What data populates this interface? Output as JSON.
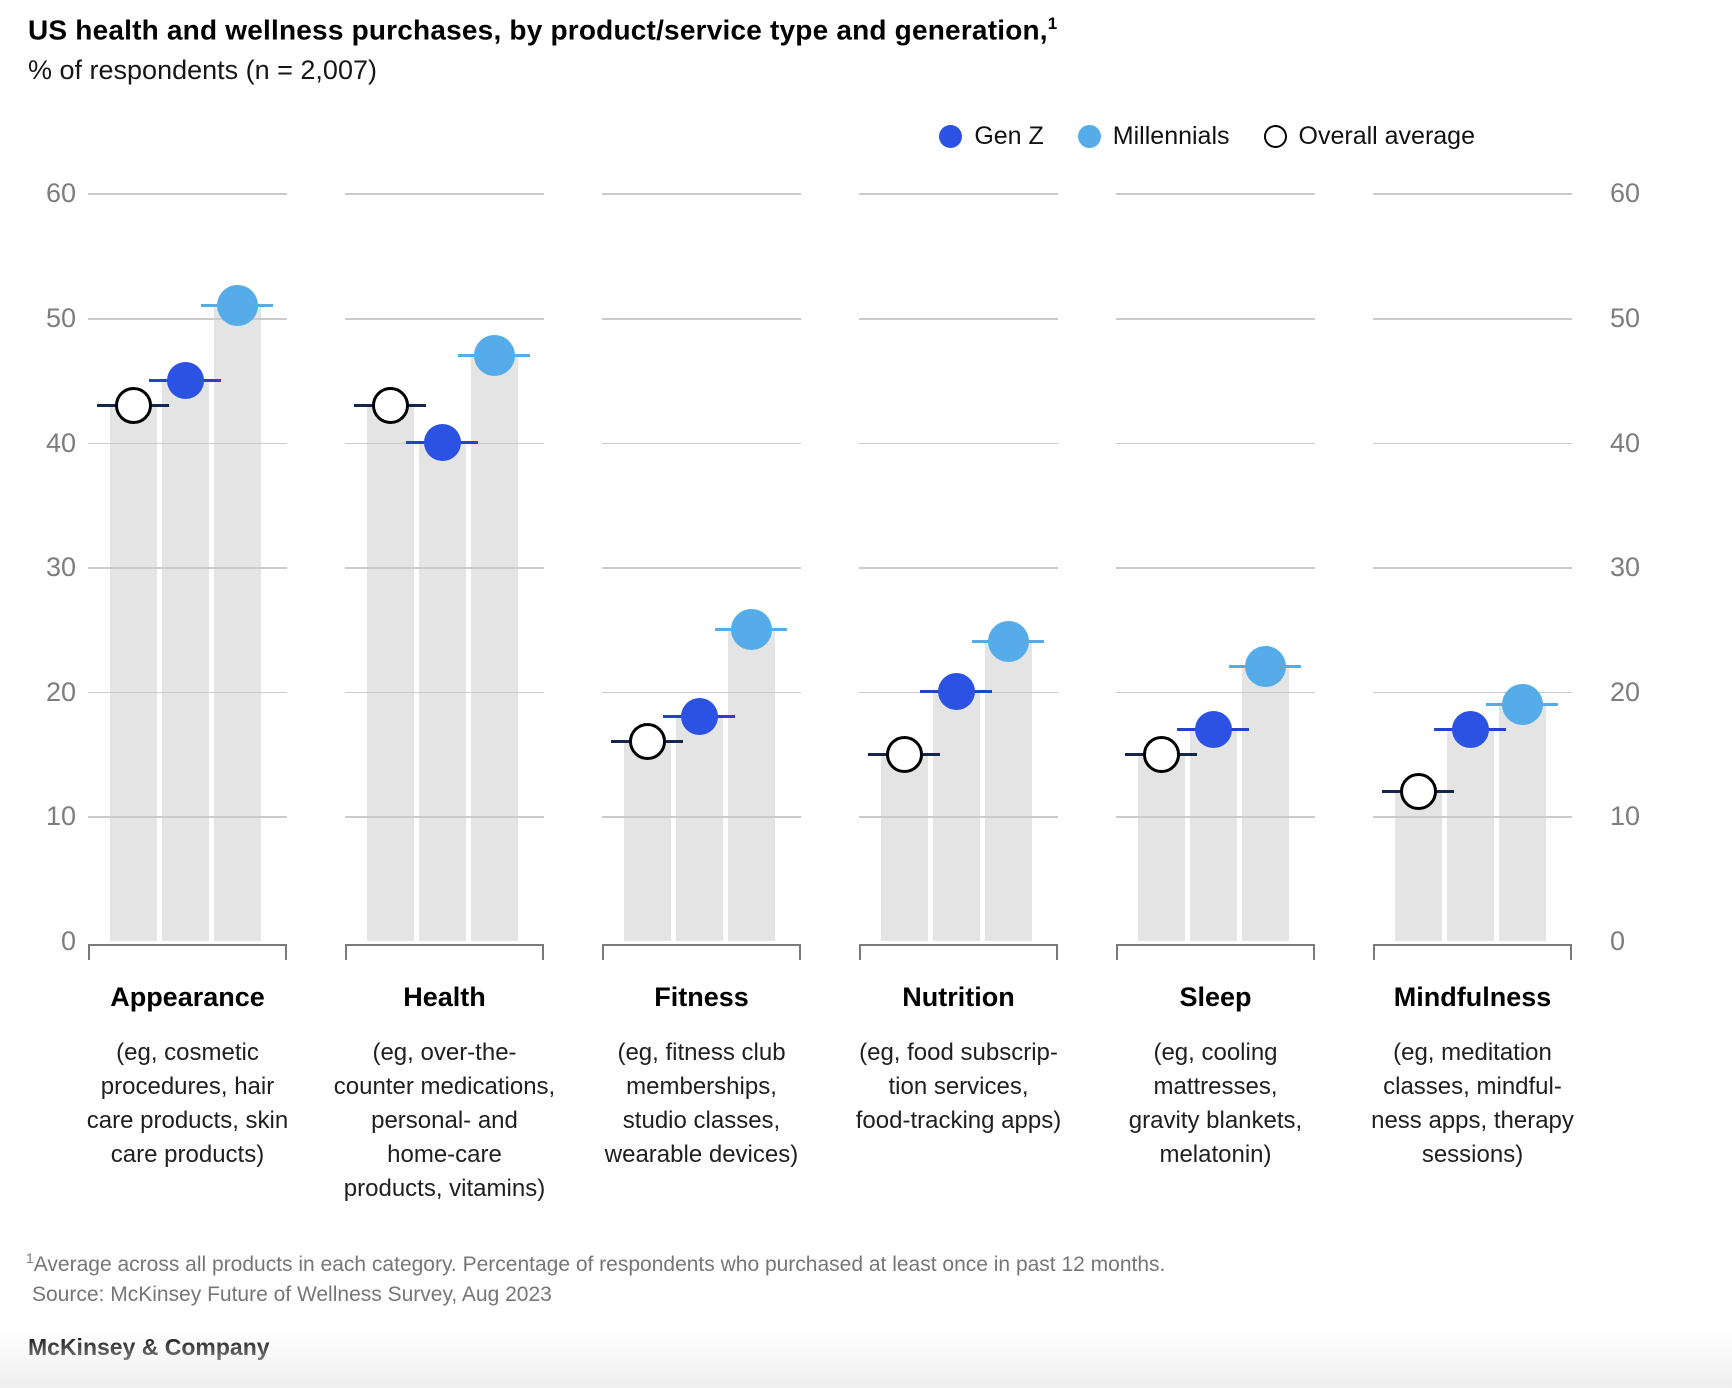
{
  "header": {
    "title": "US health and wellness purchases, by product/service type and generation,",
    "title_superscript": "1",
    "subtitle": "% of respondents (n = 2,007)"
  },
  "legend": {
    "items": [
      {
        "label": "Gen Z",
        "type": "filled",
        "color": "#2B52E2"
      },
      {
        "label": "Millennials",
        "type": "filled",
        "color": "#55ACE8"
      },
      {
        "label": "Overall average",
        "type": "open",
        "color": "#000000"
      }
    ]
  },
  "chart_data": {
    "type": "bar",
    "subtype": "dot-markers-over-gray-bars",
    "title": "US health and wellness purchases, by product/service type and generation",
    "units": "% of respondents",
    "sample_size": "n = 2,007",
    "ylim": [
      0,
      60
    ],
    "yticks": [
      0,
      10,
      20,
      30,
      40,
      50,
      60
    ],
    "grid": "horizontal, segmented per category, tick labels on both left and right sides",
    "legend_position": "top-right",
    "categories": [
      "Appearance",
      "Health",
      "Fitness",
      "Nutrition",
      "Sleep",
      "Mindfulness"
    ],
    "category_descriptions": [
      [
        "(eg, cosmetic",
        "procedures, hair",
        "care products, skin",
        "care products)"
      ],
      [
        "(eg, over-the-",
        "counter medications,",
        "personal- and",
        "home-care",
        "products, vitamins)"
      ],
      [
        "(eg, fitness club",
        "memberships,",
        "studio classes,",
        "wearable devices)"
      ],
      [
        "(eg, food subscrip-",
        "tion services,",
        "food-tracking apps)"
      ],
      [
        "(eg, cooling",
        "mattresses,",
        "gravity blankets,",
        "melatonin)"
      ],
      [
        "(eg, meditation",
        "classes, mindful-",
        "ness apps, therapy",
        "sessions)"
      ]
    ],
    "series": [
      {
        "name": "Overall average",
        "marker": "open-circle",
        "dot_color": "#FFFFFF",
        "ring_color": "#000000",
        "whisker_color": "#16254E",
        "values": [
          43,
          43,
          16,
          15,
          15,
          12
        ]
      },
      {
        "name": "Gen Z",
        "marker": "filled-circle",
        "dot_color": "#2B52E2",
        "ring_color": null,
        "whisker_color": "#2344C9",
        "values": [
          45,
          40,
          18,
          20,
          17,
          17
        ]
      },
      {
        "name": "Millennials",
        "marker": "filled-circle",
        "dot_color": "#55ACE8",
        "ring_color": null,
        "whisker_color": "#55ACE8",
        "values": [
          51,
          47,
          25,
          24,
          22,
          19
        ]
      }
    ],
    "bar_order": [
      "Overall average",
      "Gen Z",
      "Millennials"
    ],
    "bar_color": "#E4E4E4",
    "gridline_color": "#CBCBCB"
  },
  "footnote": {
    "superscript": "1",
    "line1": "Average across all products in each category. Percentage of respondents who purchased at least once in past 12 months.",
    "line2": "Source: McKinsey Future of Wellness Survey, Aug 2023"
  },
  "brand": {
    "logo": "McKinsey & Company"
  }
}
